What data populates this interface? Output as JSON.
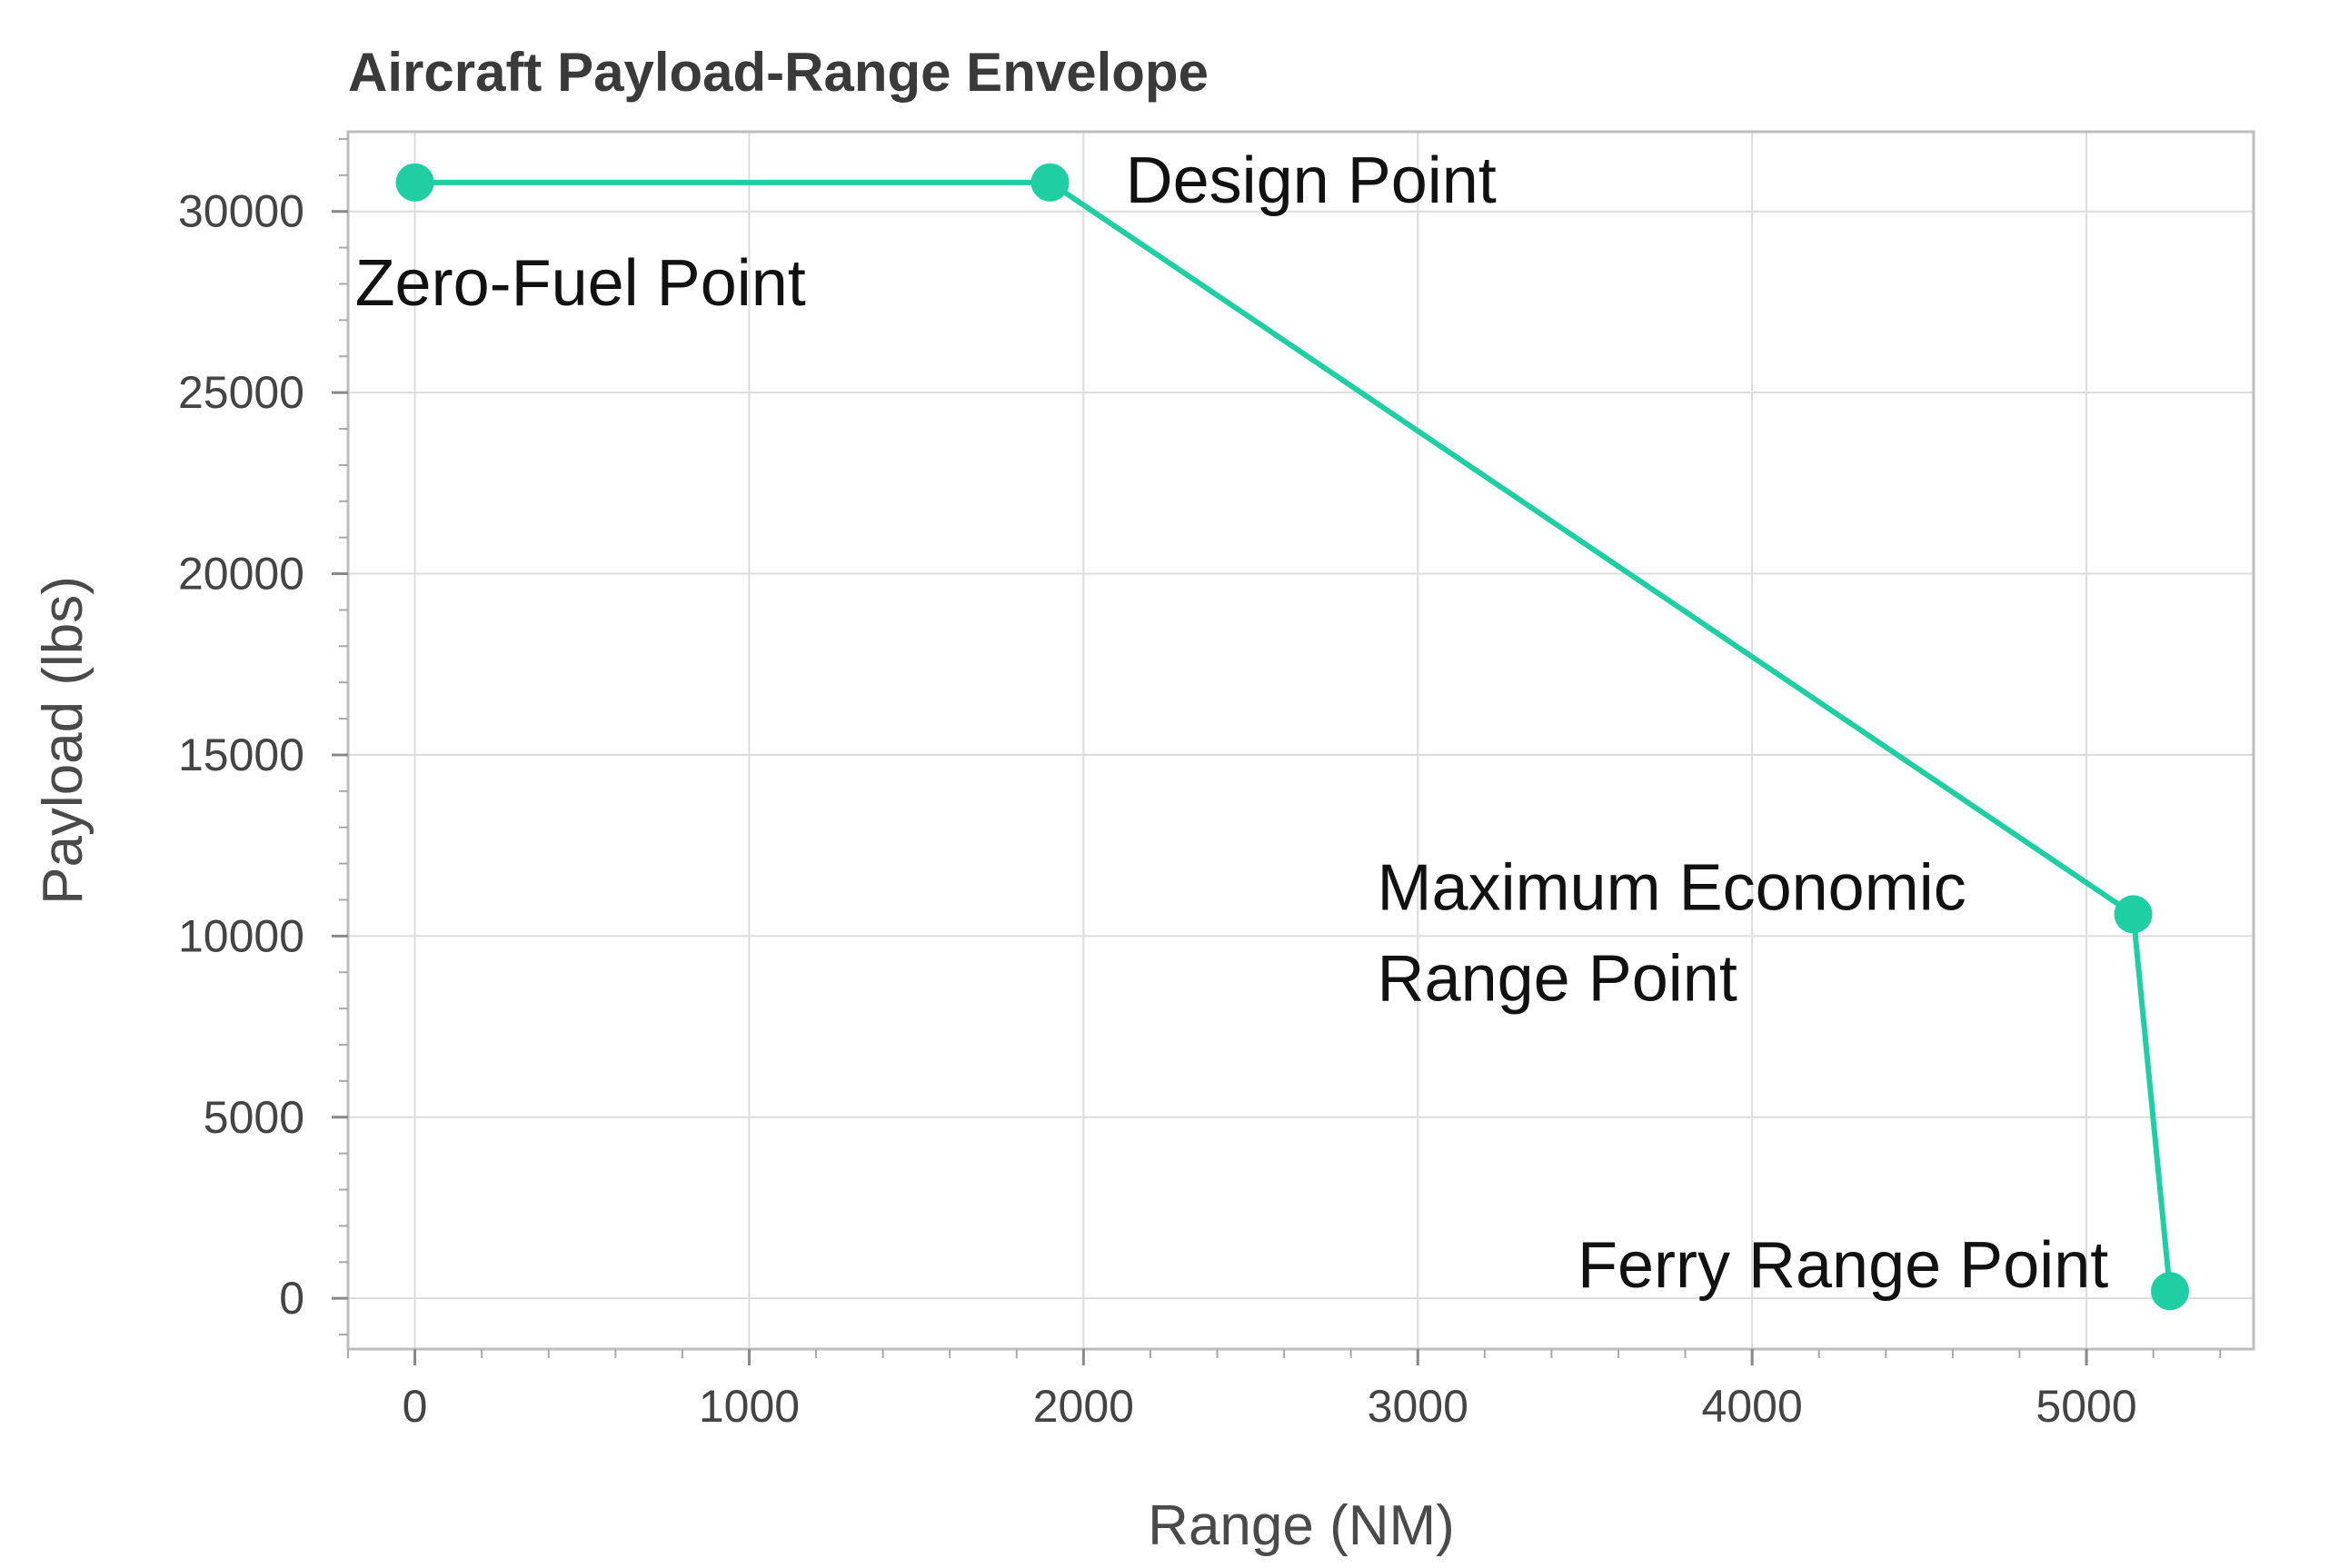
{
  "chart_data": {
    "type": "line",
    "title": "Aircraft Payload-Range Envelope",
    "xlabel": "Range (NM)",
    "ylabel": "Payload (lbs)",
    "xlim": [
      -200,
      5500
    ],
    "ylim": [
      -1400,
      32200
    ],
    "xticks": [
      0,
      1000,
      2000,
      3000,
      4000,
      5000
    ],
    "yticks": [
      0,
      5000,
      10000,
      15000,
      20000,
      25000,
      30000
    ],
    "grid": true,
    "colors": {
      "series": "#1fcfa3"
    },
    "series": [
      {
        "x": [
          0,
          1900,
          5140,
          5250
        ],
        "y": [
          30800,
          30800,
          10600,
          200
        ]
      }
    ],
    "annotations": [
      {
        "lines": [
          "Zero-Fuel Point"
        ],
        "x": 0,
        "y": 30800
      },
      {
        "lines": [
          "Design Point"
        ],
        "x": 1900,
        "y": 30800
      },
      {
        "lines": [
          "Maximum Economic",
          "Range Point"
        ],
        "x": 5140,
        "y": 10600
      },
      {
        "lines": [
          "Ferry Range Point"
        ],
        "x": 5250,
        "y": 200
      }
    ]
  }
}
